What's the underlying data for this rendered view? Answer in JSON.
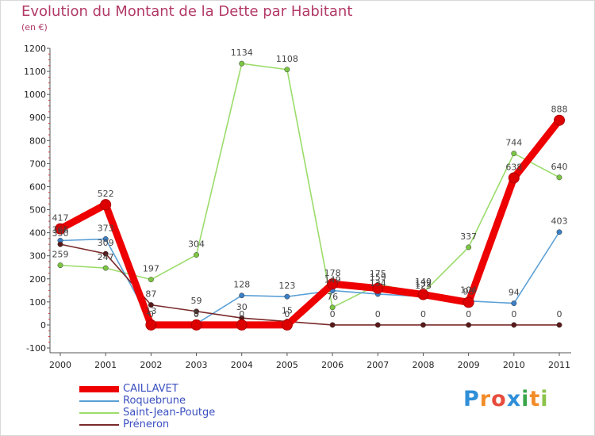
{
  "logo": {
    "text": "Proxiti",
    "letter_colors": [
      "#2f8fd8",
      "#f28c28",
      "#e74c3c",
      "#2f8fd8",
      "#3aa64a",
      "#f28c28",
      "#8bc34a"
    ]
  },
  "chart_data": {
    "type": "line",
    "title": "Evolution du Montant de la Dette par Habitant",
    "subtitle": "(en €)",
    "xlabel": "",
    "ylabel": "",
    "ylim": [
      -100,
      1200
    ],
    "yticks": [
      -100,
      0,
      100,
      200,
      300,
      400,
      500,
      600,
      700,
      800,
      900,
      1000,
      1100,
      1200
    ],
    "grid": false,
    "legend_position": "bottom-left",
    "categories": [
      "2000",
      "2001",
      "2002",
      "2003",
      "2004",
      "2005",
      "2006",
      "2007",
      "2008",
      "2009",
      "2010",
      "2011"
    ],
    "series": [
      {
        "name": "CAILLAVET",
        "color": "#ee0000",
        "values": [
          417,
          522,
          0,
          0,
          0,
          0,
          178,
          159,
          132,
          98,
          638,
          888
        ],
        "labels": [
          "417",
          "522",
          "0",
          "0",
          "0",
          "0",
          "178",
          "159",
          "132",
          "98",
          "638",
          "888"
        ]
      },
      {
        "name": "Roquebrune",
        "color": "#5ba0d6",
        "values": [
          366,
          373,
          13,
          5,
          128,
          123,
          149,
          134,
          123,
          104,
          94,
          403
        ],
        "labels": [
          "366",
          "373",
          "13",
          "5",
          "128",
          "123",
          "149",
          "134",
          "123",
          "104",
          "94",
          "403"
        ]
      },
      {
        "name": "Saint-Jean-Poutge",
        "color": "#9bdc6a",
        "values": [
          259,
          247,
          197,
          304,
          1134,
          1108,
          76,
          175,
          140,
          337,
          744,
          640
        ],
        "labels": [
          "259",
          "247",
          "197",
          "304",
          "1134",
          "1108",
          "76",
          "175",
          "140",
          "337",
          "744",
          "640"
        ]
      },
      {
        "name": "Préneron",
        "color": "#7a2a2a",
        "values": [
          350,
          309,
          87,
          59,
          30,
          15,
          0,
          0,
          0,
          0,
          0,
          0
        ],
        "labels": [
          "350",
          "309",
          "87",
          "59",
          "30",
          "15",
          "0",
          "0",
          "0",
          "0",
          "0",
          "0"
        ]
      }
    ]
  }
}
